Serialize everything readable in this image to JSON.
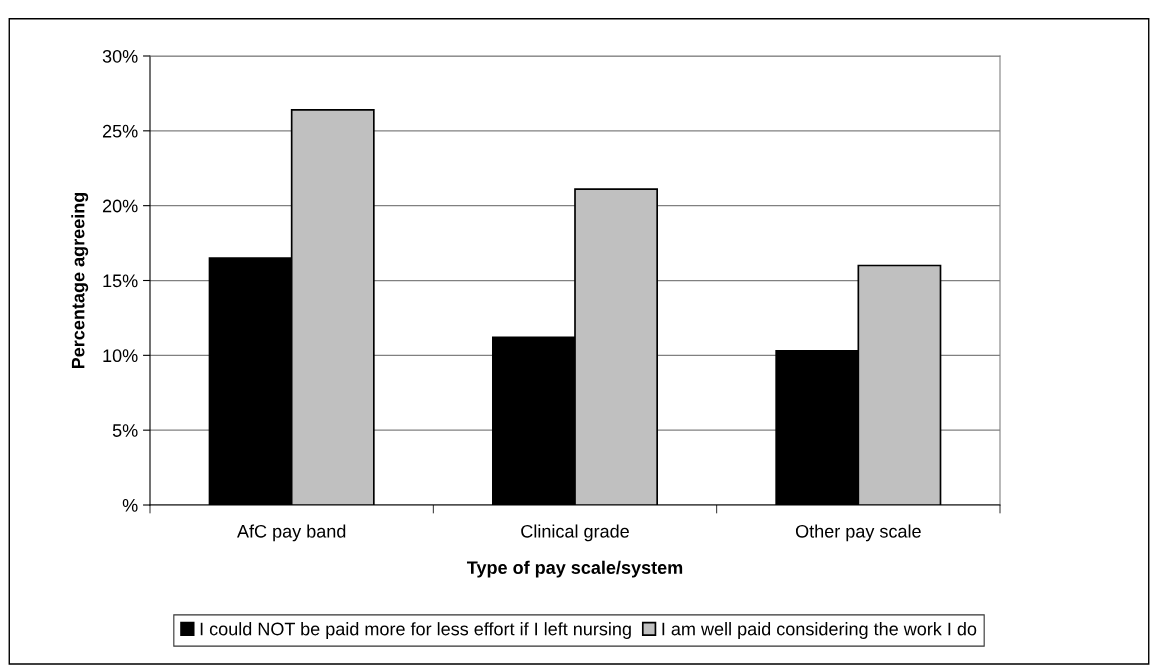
{
  "chart_data": {
    "type": "bar",
    "xlabel": "Type of pay scale/system",
    "ylabel": "Percentage agreeing",
    "categories": [
      "AfC pay band",
      "Clinical grade",
      "Other pay scale"
    ],
    "series": [
      {
        "name": "I could NOT be paid more for less effort if I left nursing",
        "color": "#000000",
        "values": [
          16.5,
          11.2,
          10.3
        ]
      },
      {
        "name": "I am well paid considering the work I do",
        "color": "#c0c0c0",
        "values": [
          26.4,
          21.1,
          16.0
        ]
      }
    ],
    "ylim": [
      0,
      30
    ],
    "yticks": [
      {
        "value": 0,
        "label": "%"
      },
      {
        "value": 5,
        "label": "5%"
      },
      {
        "value": 10,
        "label": "10%"
      },
      {
        "value": 15,
        "label": "15%"
      },
      {
        "value": 20,
        "label": "20%"
      },
      {
        "value": 25,
        "label": "25%"
      },
      {
        "value": 30,
        "label": "30%"
      }
    ],
    "grid": "y",
    "legend": "bottom"
  }
}
